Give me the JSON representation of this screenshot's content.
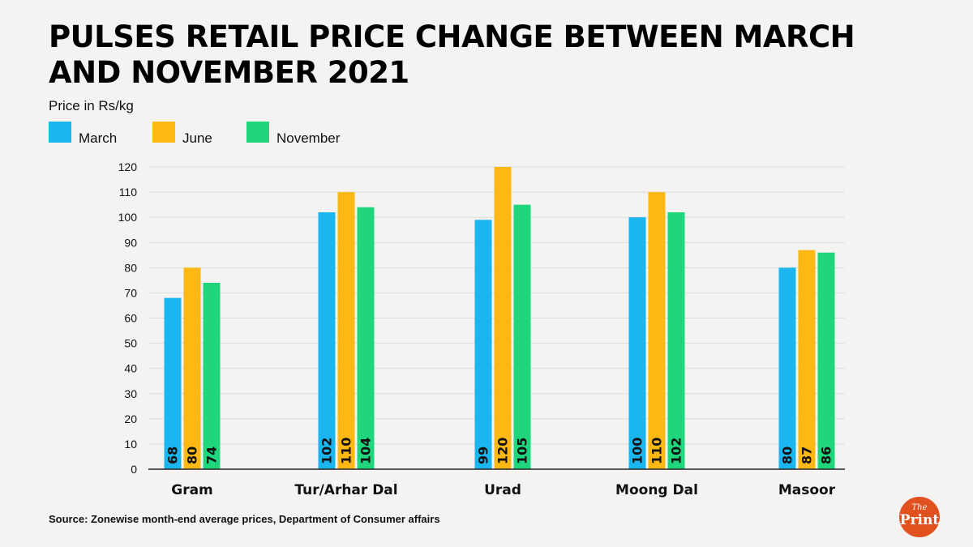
{
  "title": "PULSES RETAIL PRICE CHANGE BETWEEN MARCH AND NOVEMBER 2021",
  "unit_label": "Price in Rs/kg",
  "source": "Source: Zonewise month-end average prices, Department of Consumer affairs",
  "logo": {
    "line1": "The",
    "line2": "Print"
  },
  "legend": [
    {
      "label": "March",
      "color": "#1bb6f0"
    },
    {
      "label": "June",
      "color": "#fdb813"
    },
    {
      "label": "November",
      "color": "#1fd67c"
    }
  ],
  "chart_data": {
    "type": "bar",
    "title": "PULSES RETAIL PRICE CHANGE BETWEEN MARCH AND NOVEMBER 2021",
    "ylabel": "Price in Rs/kg",
    "xlabel": "",
    "categories": [
      "Gram",
      "Tur/Arhar Dal",
      "Urad",
      "Moong Dal",
      "Masoor"
    ],
    "series": [
      {
        "name": "March",
        "color": "#1bb6f0",
        "values": [
          68,
          102,
          99,
          100,
          80
        ]
      },
      {
        "name": "June",
        "color": "#fdb813",
        "values": [
          80,
          110,
          120,
          110,
          87
        ]
      },
      {
        "name": "November",
        "color": "#1fd67c",
        "values": [
          74,
          104,
          105,
          102,
          86
        ]
      }
    ],
    "ylim": [
      0,
      120
    ],
    "yticks": [
      0,
      10,
      20,
      30,
      40,
      50,
      60,
      70,
      80,
      90,
      100,
      110,
      120
    ],
    "grid": true,
    "legend_position": "top-left"
  }
}
